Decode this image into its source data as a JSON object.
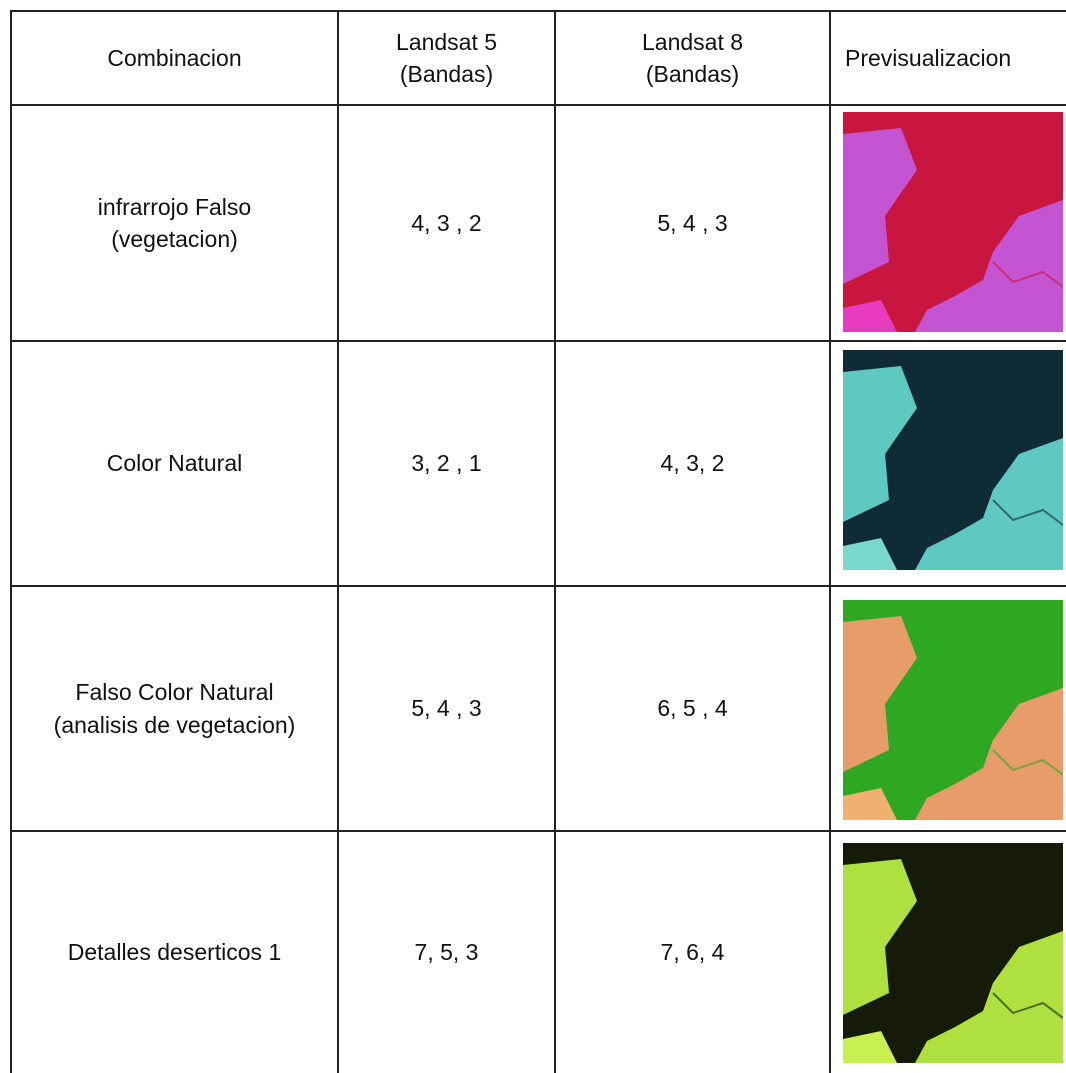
{
  "table": {
    "header": [
      "Combinacion",
      "Landsat 5\n(Bandas)",
      "Landsat 8\n(Bandas)",
      "Previsualizacion"
    ],
    "rows": [
      [
        "infrarrojo Falso\n(vegetacion)",
        "4, 3 , 2",
        "5, 4 , 3"
      ],
      [
        "Color Natural",
        "3, 2 , 1",
        "4, 3, 2"
      ],
      [
        "Falso Color Natural\n(analisis de vegetacion)",
        "5, 4 , 3",
        "6, 5 , 4"
      ],
      [
        "Detalles deserticos 1",
        "7, 5, 3",
        "7, 6, 4"
      ]
    ]
  }
}
